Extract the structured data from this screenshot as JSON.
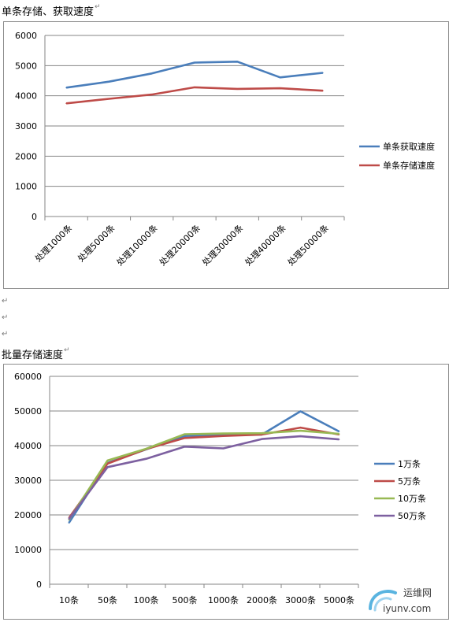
{
  "doc": {
    "heading1": "单条存储、获取速度",
    "heading2": "批量存储速度",
    "para_mark": "↵"
  },
  "watermark": {
    "brand": "运维网",
    "domain": "iyunv.com"
  },
  "chart_data": [
    {
      "type": "line",
      "title": "",
      "xlabel": "",
      "ylabel": "",
      "categories": [
        "处理1000条",
        "处理5000条",
        "处理10000条",
        "处理20000条",
        "处理30000条",
        "处理40000条",
        "处理50000条"
      ],
      "series": [
        {
          "name": "单条获取速度",
          "color": "#4a7ebb",
          "values": [
            4270,
            4470,
            4740,
            5100,
            5130,
            4610,
            4760
          ]
        },
        {
          "name": "单条存储速度",
          "color": "#be4b48",
          "values": [
            3750,
            3900,
            4040,
            4280,
            4230,
            4250,
            4170
          ]
        }
      ],
      "ylim": [
        0,
        6000
      ],
      "yticks": [
        0,
        1000,
        2000,
        3000,
        4000,
        5000,
        6000
      ],
      "grid": true,
      "legend_position": "right"
    },
    {
      "type": "line",
      "title": "",
      "xlabel": "",
      "ylabel": "",
      "categories": [
        "10条",
        "50条",
        "100条",
        "500条",
        "1000条",
        "2000条",
        "3000条",
        "5000条"
      ],
      "series": [
        {
          "name": "1万条",
          "color": "#4a7ebb",
          "values": [
            17700,
            35000,
            38900,
            42800,
            43100,
            43200,
            49900,
            44100
          ]
        },
        {
          "name": "5万条",
          "color": "#be4b48",
          "values": [
            19100,
            34800,
            39000,
            42200,
            42800,
            43200,
            45200,
            43200
          ]
        },
        {
          "name": "10万条",
          "color": "#98b954",
          "values": [
            18600,
            35700,
            39100,
            43300,
            43500,
            43600,
            44300,
            43400
          ]
        },
        {
          "name": "50万条",
          "color": "#7d60a0",
          "values": [
            18800,
            33800,
            36200,
            39700,
            39200,
            41900,
            42700,
            41800
          ]
        }
      ],
      "ylim": [
        0,
        60000
      ],
      "yticks": [
        0,
        10000,
        20000,
        30000,
        40000,
        50000,
        60000
      ],
      "grid": true,
      "legend_position": "right"
    }
  ]
}
